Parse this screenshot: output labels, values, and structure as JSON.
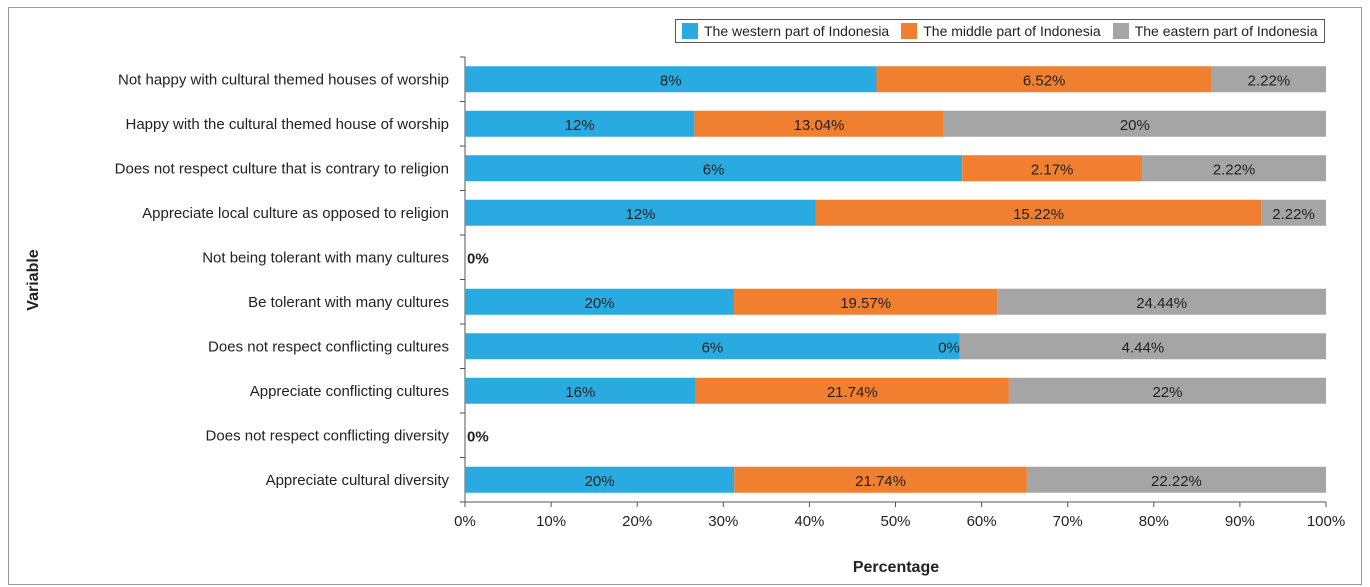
{
  "chart_data": {
    "type": "bar",
    "orientation": "horizontal",
    "stacked": "percent",
    "xlabel": "Percentage",
    "ylabel": "Variable",
    "xlim": [
      0,
      100
    ],
    "x_ticks": [
      "0%",
      "10%",
      "20%",
      "30%",
      "40%",
      "50%",
      "60%",
      "70%",
      "80%",
      "90%",
      "100%"
    ],
    "legend_position": "top-right",
    "grid": false,
    "categories": [
      "Not happy with cultural themed houses of worship",
      "Happy with the cultural themed house of worship",
      "Does not respect culture that is contrary to religion",
      "Appreciate local culture as opposed to religion",
      "Not being tolerant with many cultures",
      "Be tolerant with many cultures",
      "Does not respect conflicting cultures",
      "Appreciate conflicting cultures",
      "Does not respect conflicting diversity",
      "Appreciate cultural diversity"
    ],
    "series": [
      {
        "name": "The western part of Indonesia",
        "color": "#29ABE2",
        "values": [
          8,
          12,
          6,
          12,
          0,
          20,
          6,
          16,
          0,
          20
        ],
        "labels": [
          "8%",
          "12%",
          "6%",
          "12%",
          "",
          "20%",
          "6%",
          "16%",
          "",
          "20%"
        ]
      },
      {
        "name": "The middle part of Indonesia",
        "color": "#F07F2F",
        "values": [
          6.52,
          13.04,
          2.17,
          15.22,
          0,
          19.57,
          0,
          21.74,
          0,
          21.74
        ],
        "labels": [
          "6.52%",
          "13.04%",
          "2.17%",
          "15.22%",
          "",
          "19.57%",
          "0%",
          "21.74%",
          "",
          "21.74%"
        ]
      },
      {
        "name": "The eastern part of Indonesia",
        "color": "#A5A5A5",
        "values": [
          2.22,
          20,
          2.22,
          2.22,
          0,
          24.44,
          4.44,
          22,
          0,
          22.22
        ],
        "labels": [
          "2.22%",
          "20%",
          "2.22%",
          "2.22%",
          "",
          "24.44%",
          "4.44%",
          "22%",
          "",
          "22.22%"
        ]
      }
    ],
    "zero_row_labels": [
      "",
      "",
      "",
      "",
      "0%",
      "",
      "",
      "",
      "0%",
      ""
    ]
  }
}
